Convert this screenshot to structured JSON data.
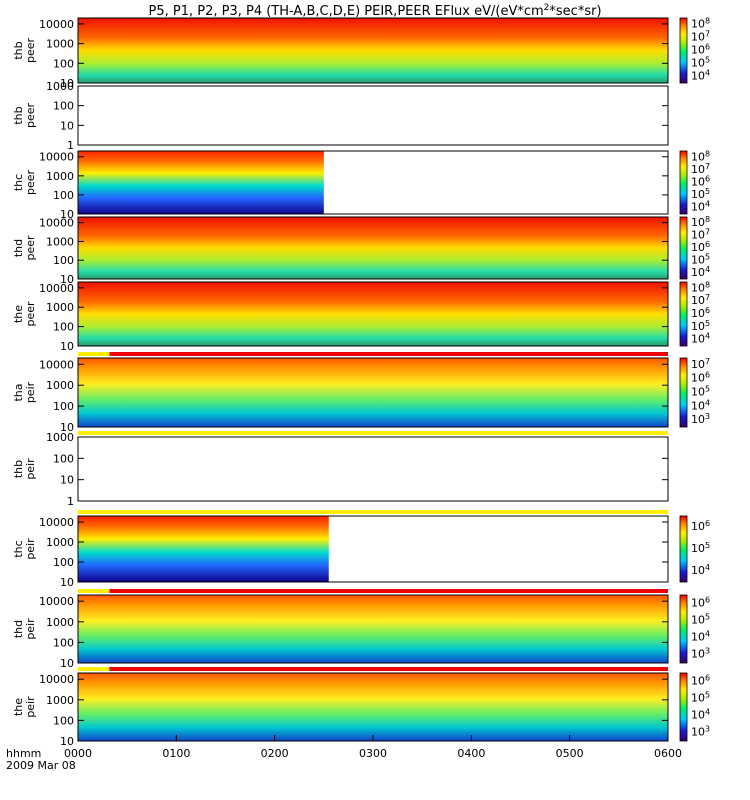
{
  "title": "P5, P1, P2, P3, P4 (TH-A,B,C,D,E) PEIR,PEER EFlux eV/(eV*cm^2*sec*sr)",
  "title_main": "P5, P1, P2, P3, P4 (TH-A,B,C,D,E) PEIR,PEER EFlux eV/(eV*cm",
  "title_sup": "2",
  "title_tail": "*sec*sr)",
  "footer": {
    "time_label": "hhmm",
    "date_label": "2009 Mar 08"
  },
  "colors": {
    "flag_red": "#ee0000",
    "flag_yellow": "#ffee00"
  },
  "chart_data": [
    {
      "type": "heatmap",
      "probe": "thb",
      "species": "peer",
      "ylabel": [
        "thb",
        "peer"
      ],
      "data_start": 0,
      "data_end": 600,
      "ylim": [
        10,
        20000
      ],
      "yscale": "log",
      "yticks": [
        "10",
        "100",
        "1000",
        "10000"
      ],
      "colorbar": [
        "10^4",
        "10^5",
        "10^6",
        "10^7",
        "10^8"
      ],
      "qual_flags": []
    },
    {
      "type": "heatmap",
      "probe": "thb",
      "species": "peer",
      "ylabel": [
        "thb",
        "peer"
      ],
      "data_start": null,
      "data_end": null,
      "ylim": [
        1,
        1000
      ],
      "yscale": "log",
      "yticks": [
        "1",
        "10",
        "100",
        "1000"
      ],
      "colorbar": [],
      "qual_flags": []
    },
    {
      "type": "heatmap",
      "probe": "thc",
      "species": "peer",
      "ylabel": [
        "thc",
        "peer"
      ],
      "data_start": 0,
      "data_end": 250,
      "ylim": [
        10,
        20000
      ],
      "yscale": "log",
      "yticks": [
        "10",
        "100",
        "1000",
        "10000"
      ],
      "colorbar": [
        "10^4",
        "10^5",
        "10^6",
        "10^7",
        "10^8"
      ],
      "qual_flags": []
    },
    {
      "type": "heatmap",
      "probe": "thd",
      "species": "peer",
      "ylabel": [
        "thd",
        "peer"
      ],
      "data_start": 0,
      "data_end": 600,
      "ylim": [
        10,
        20000
      ],
      "yscale": "log",
      "yticks": [
        "10",
        "100",
        "1000",
        "10000"
      ],
      "colorbar": [
        "10^4",
        "10^5",
        "10^6",
        "10^7",
        "10^8"
      ],
      "qual_flags": []
    },
    {
      "type": "heatmap",
      "probe": "the",
      "species": "peer",
      "ylabel": [
        "the",
        "peer"
      ],
      "data_start": 0,
      "data_end": 600,
      "ylim": [
        10,
        20000
      ],
      "yscale": "log",
      "yticks": [
        "10",
        "100",
        "1000",
        "10000"
      ],
      "colorbar": [
        "10^4",
        "10^5",
        "10^6",
        "10^7",
        "10^8"
      ],
      "qual_flags": []
    },
    {
      "type": "heatmap",
      "probe": "tha",
      "species": "peir",
      "ylabel": [
        "tha",
        "peir"
      ],
      "data_start": 0,
      "data_end": 600,
      "ylim": [
        10,
        20000
      ],
      "yscale": "log",
      "yticks": [
        "10",
        "100",
        "1000",
        "10000"
      ],
      "colorbar": [
        "10^3",
        "10^4",
        "10^5",
        "10^6",
        "10^7"
      ],
      "qual_flags": [
        {
          "start": 0,
          "end": 32,
          "color": "yellow"
        },
        {
          "start": 32,
          "end": 600,
          "color": "red"
        }
      ]
    },
    {
      "type": "heatmap",
      "probe": "thb",
      "species": "peir",
      "ylabel": [
        "thb",
        "peir"
      ],
      "data_start": null,
      "data_end": null,
      "ylim": [
        1,
        1000
      ],
      "yscale": "log",
      "yticks": [
        "1",
        "10",
        "100",
        "1000"
      ],
      "colorbar": [],
      "qual_flags": [
        {
          "start": 0,
          "end": 600,
          "color": "yellow"
        }
      ]
    },
    {
      "type": "heatmap",
      "probe": "thc",
      "species": "peir",
      "ylabel": [
        "thc",
        "peir"
      ],
      "data_start": 0,
      "data_end": 255,
      "ylim": [
        10,
        20000
      ],
      "yscale": "log",
      "yticks": [
        "10",
        "100",
        "1000",
        "10000"
      ],
      "colorbar": [
        "10^4",
        "10^5",
        "10^6"
      ],
      "qual_flags": [
        {
          "start": 0,
          "end": 600,
          "color": "yellow"
        }
      ]
    },
    {
      "type": "heatmap",
      "probe": "thd",
      "species": "peir",
      "ylabel": [
        "thd",
        "peir"
      ],
      "data_start": 0,
      "data_end": 600,
      "ylim": [
        10,
        20000
      ],
      "yscale": "log",
      "yticks": [
        "10",
        "100",
        "1000",
        "10000"
      ],
      "colorbar": [
        "10^3",
        "10^4",
        "10^5",
        "10^6"
      ],
      "qual_flags": [
        {
          "start": 0,
          "end": 32,
          "color": "yellow"
        },
        {
          "start": 32,
          "end": 600,
          "color": "red"
        }
      ]
    },
    {
      "type": "heatmap",
      "probe": "the",
      "species": "peir",
      "ylabel": [
        "the",
        "peir"
      ],
      "data_start": 0,
      "data_end": 600,
      "ylim": [
        10,
        20000
      ],
      "yscale": "log",
      "yticks": [
        "10",
        "100",
        "1000",
        "10000"
      ],
      "colorbar": [
        "10^3",
        "10^4",
        "10^5",
        "10^6"
      ],
      "qual_flags": [
        {
          "start": 0,
          "end": 32,
          "color": "yellow"
        },
        {
          "start": 32,
          "end": 600,
          "color": "red"
        }
      ]
    }
  ],
  "time_axis": {
    "tick_labels": [
      "0000",
      "0100",
      "0200",
      "0300",
      "0400",
      "0500",
      "0600"
    ],
    "range": [
      0,
      600
    ]
  }
}
